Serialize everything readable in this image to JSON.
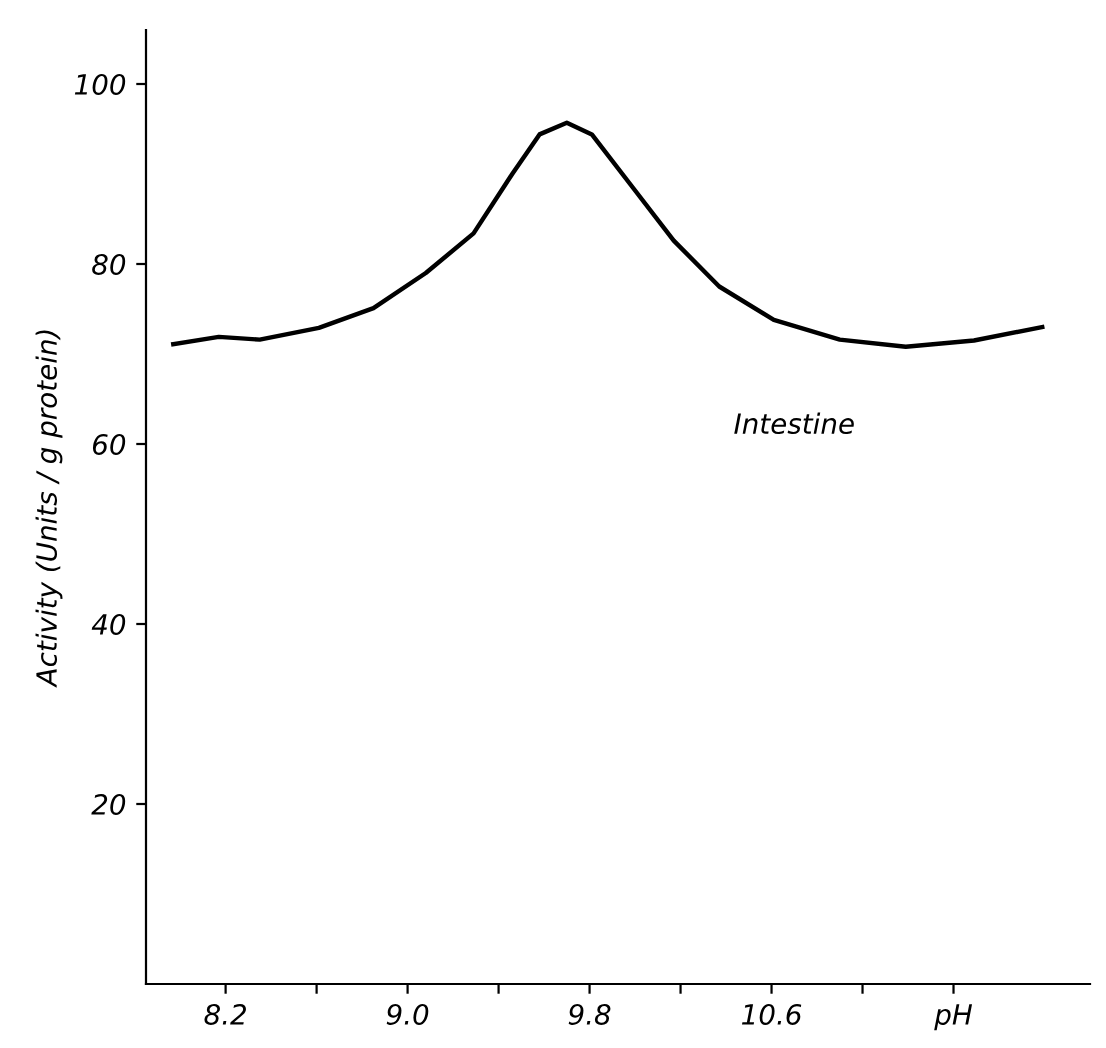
{
  "chart_data": {
    "type": "line",
    "ylabel": "Activity (Units / g protein)",
    "x": [
      7.97,
      8.17,
      8.35,
      8.61,
      8.85,
      9.08,
      9.29,
      9.46,
      9.58,
      9.7,
      9.81,
      9.99,
      10.17,
      10.37,
      10.61,
      10.9,
      11.19,
      11.49,
      11.79
    ],
    "series": [
      {
        "name": "Intestine",
        "color": "#000000",
        "values": [
          71.1,
          71.9,
          71.6,
          72.9,
          75.1,
          79.0,
          83.4,
          90.0,
          94.4,
          95.7,
          94.4,
          88.5,
          82.6,
          77.5,
          73.8,
          71.6,
          70.8,
          71.5,
          73.0
        ]
      }
    ],
    "xlim": [
      7.85,
      12.0
    ],
    "ylim": [
      0,
      106
    ],
    "xticks": [
      8.2,
      {
        "value": 8.6,
        "label": null
      },
      {
        "value": 9.0,
        "label": "9.0"
      },
      {
        "value": 9.4,
        "label": null
      },
      9.8,
      {
        "value": 10.2,
        "label": null
      },
      10.6,
      {
        "value": 11.0,
        "label": null
      },
      {
        "value": 11.4,
        "label": "pH"
      }
    ],
    "yticks": [
      20,
      40,
      60,
      80,
      100
    ],
    "grid": false,
    "legend": false,
    "marker": "none",
    "line_style": "solid"
  }
}
